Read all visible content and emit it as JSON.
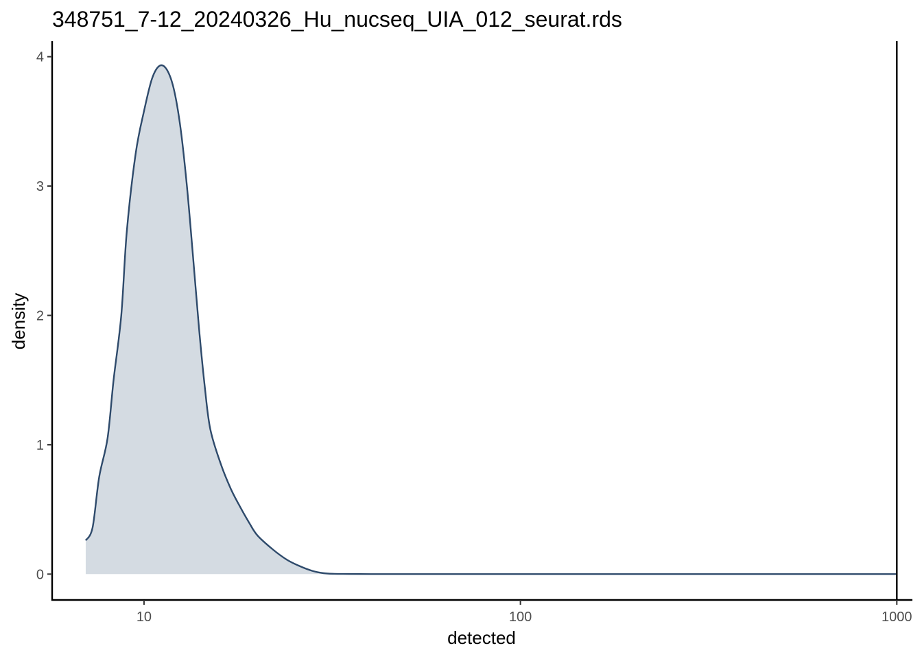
{
  "chart_data": {
    "type": "area",
    "title": "348751_7-12_20240326_Hu_nucseq_UIA_012_seurat.rds",
    "xlabel": "detected",
    "ylabel": "density",
    "x_scale": "log10",
    "xlim": [
      5.7,
      1100
    ],
    "ylim": [
      -0.2,
      4.12
    ],
    "x_ticks": [
      10,
      100,
      1000
    ],
    "x_tick_labels": [
      "10",
      "100",
      "1000"
    ],
    "y_ticks": [
      0,
      1,
      2,
      3,
      4
    ],
    "y_tick_labels": [
      "0",
      "1",
      "2",
      "3",
      "4"
    ],
    "grid": false,
    "legend": "none",
    "vline": {
      "x": 1000
    },
    "series": [
      {
        "x": [
          7,
          7.3,
          7.6,
          8,
          8.3,
          8.7,
          9,
          9.5,
          10,
          10.5,
          11,
          11.5,
          12,
          12.5,
          13,
          13.5,
          14,
          14.5,
          15,
          16,
          17,
          18,
          19,
          20,
          22,
          24,
          26,
          28,
          30,
          32,
          35,
          40,
          50,
          100,
          200,
          500,
          1000
        ],
        "y": [
          0.26,
          0.36,
          0.75,
          1.05,
          1.5,
          2.0,
          2.65,
          3.25,
          3.58,
          3.83,
          3.93,
          3.9,
          3.75,
          3.45,
          3.0,
          2.45,
          1.9,
          1.45,
          1.12,
          0.85,
          0.66,
          0.52,
          0.4,
          0.3,
          0.19,
          0.11,
          0.06,
          0.025,
          0.007,
          0.002,
          0.001,
          0.0,
          0.0,
          0.0,
          0.0,
          0.0,
          0.0
        ]
      }
    ],
    "colors": {
      "line": "#2E4A6B",
      "fill": "#D4DBE2",
      "axis": "#000000"
    }
  }
}
